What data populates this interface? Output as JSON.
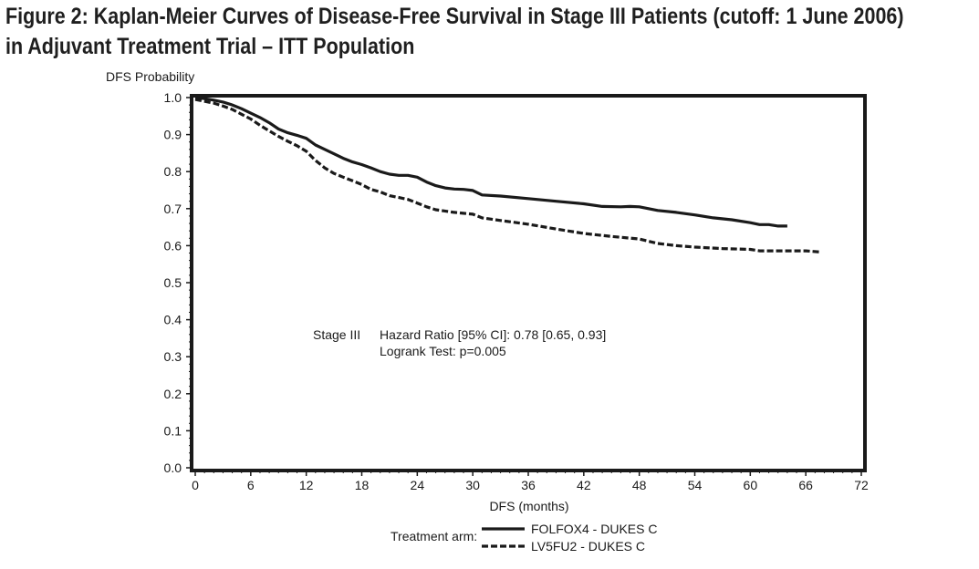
{
  "figure": {
    "title_line1": "Figure 2: Kaplan-Meier Curves of Disease-Free Survival in Stage III Patients (cutoff: 1 June 2006)",
    "title_line2": "in Adjuvant Treatment Trial – ITT Population"
  },
  "chart_data": {
    "type": "line",
    "title": "Figure 2: Kaplan-Meier Curves of Disease-Free Survival in Stage III Patients (cutoff: 1 June 2006) in Adjuvant Treatment Trial – ITT Population",
    "xlabel": "DFS (months)",
    "ylabel": "DFS Probability",
    "xlim": [
      0,
      72
    ],
    "ylim": [
      0.0,
      1.0
    ],
    "x_ticks": [
      "0",
      "6",
      "12",
      "18",
      "24",
      "30",
      "36",
      "42",
      "48",
      "54",
      "60",
      "66",
      "72"
    ],
    "y_ticks": [
      "0.0",
      "0.1",
      "0.2",
      "0.3",
      "0.4",
      "0.5",
      "0.6",
      "0.7",
      "0.8",
      "0.9",
      "1.0"
    ],
    "annotation": {
      "group": "Stage III",
      "line1": "Hazard Ratio [95% CI]: 0.78 [0.65, 0.93]",
      "line2": "Logrank Test: p=0.005"
    },
    "legend_prefix": "Treatment arm:",
    "legend_position": "bottom-center",
    "series": [
      {
        "name": "FOLFOX4 - DUKES C",
        "style": "solid",
        "x": [
          0,
          1,
          2,
          3,
          4,
          5,
          6,
          7,
          8,
          9,
          10,
          11,
          12,
          13,
          14,
          15,
          16,
          17,
          18,
          19,
          20,
          21,
          22,
          23,
          24,
          25,
          26,
          27,
          28,
          29,
          30,
          31,
          33,
          36,
          39,
          42,
          44,
          46,
          47,
          48,
          50,
          52,
          54,
          56,
          58,
          60,
          61,
          62,
          63,
          64
        ],
        "y": [
          1.0,
          0.997,
          0.993,
          0.988,
          0.98,
          0.97,
          0.958,
          0.946,
          0.932,
          0.915,
          0.905,
          0.898,
          0.89,
          0.872,
          0.86,
          0.848,
          0.836,
          0.826,
          0.819,
          0.81,
          0.8,
          0.793,
          0.79,
          0.79,
          0.785,
          0.772,
          0.762,
          0.756,
          0.753,
          0.752,
          0.749,
          0.737,
          0.734,
          0.727,
          0.72,
          0.713,
          0.706,
          0.705,
          0.706,
          0.705,
          0.695,
          0.69,
          0.683,
          0.675,
          0.67,
          0.662,
          0.657,
          0.657,
          0.653,
          0.653
        ]
      },
      {
        "name": "LV5FU2 - DUKES C",
        "style": "dashed",
        "x": [
          0,
          1,
          2,
          3,
          4,
          5,
          6,
          7,
          8,
          9,
          10,
          11,
          12,
          13,
          14,
          15,
          16,
          17,
          18,
          19,
          20,
          21,
          22,
          23,
          24,
          25,
          26,
          28,
          30,
          31,
          33,
          36,
          39,
          42,
          45,
          48,
          50,
          52,
          54,
          57,
          60,
          61,
          63,
          66,
          67.5
        ],
        "y": [
          0.995,
          0.99,
          0.985,
          0.977,
          0.968,
          0.955,
          0.942,
          0.925,
          0.91,
          0.895,
          0.882,
          0.87,
          0.855,
          0.83,
          0.81,
          0.795,
          0.785,
          0.775,
          0.765,
          0.752,
          0.745,
          0.735,
          0.73,
          0.725,
          0.715,
          0.705,
          0.697,
          0.69,
          0.685,
          0.675,
          0.668,
          0.658,
          0.645,
          0.633,
          0.625,
          0.618,
          0.606,
          0.6,
          0.596,
          0.592,
          0.59,
          0.586,
          0.586,
          0.586,
          0.583
        ]
      }
    ]
  }
}
